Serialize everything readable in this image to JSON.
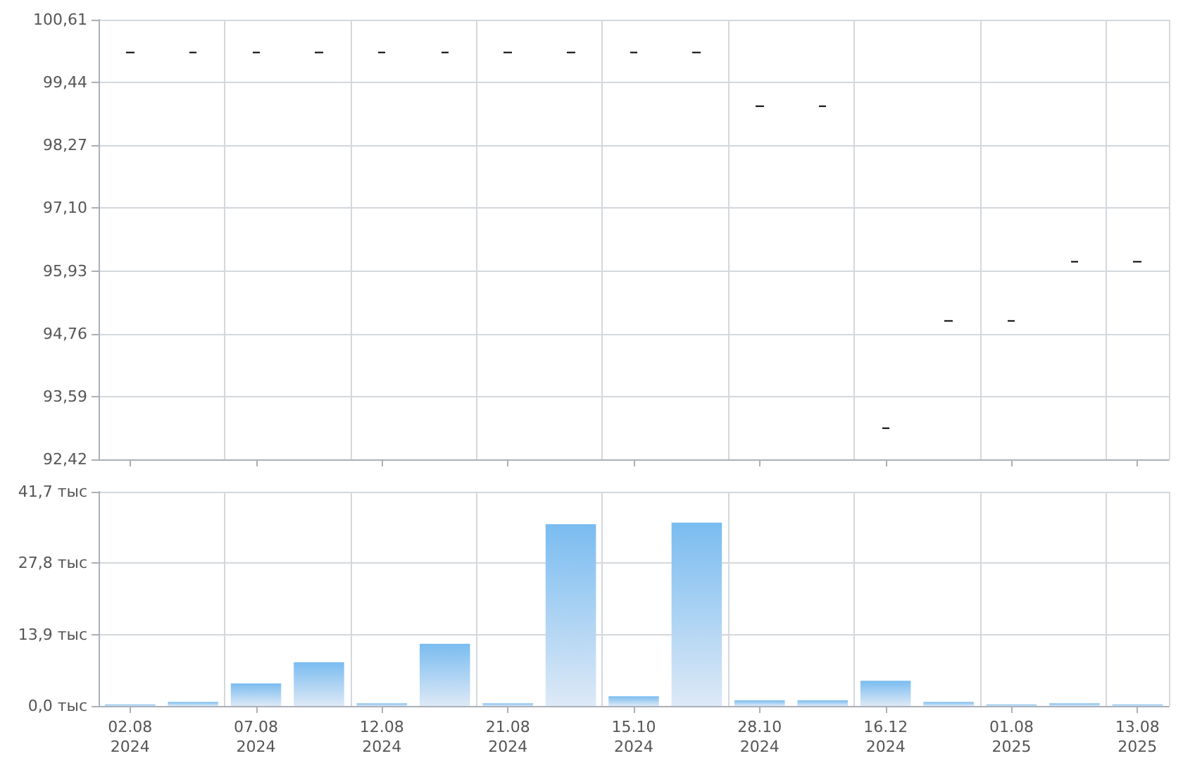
{
  "chart_data": [
    {
      "type": "candlestick",
      "categories": [
        null,
        null,
        null,
        null,
        null,
        null,
        null,
        null,
        null,
        null,
        null,
        null,
        null,
        null,
        null,
        null,
        null
      ],
      "ohlc": [
        [
          100.0,
          100.0,
          100.0,
          100.0
        ],
        [
          100.0,
          100.0,
          100.0,
          100.0
        ],
        [
          100.0,
          100.0,
          100.0,
          100.0
        ],
        [
          100.0,
          100.0,
          100.0,
          100.0
        ],
        [
          100.0,
          100.0,
          100.0,
          100.0
        ],
        [
          100.0,
          100.0,
          100.0,
          100.0
        ],
        [
          100.0,
          100.0,
          100.0,
          100.0
        ],
        [
          100.0,
          100.0,
          100.0,
          100.0
        ],
        [
          100.0,
          100.0,
          100.0,
          100.0
        ],
        [
          100.0,
          100.0,
          100.0,
          100.0
        ],
        [
          99.0,
          99.0,
          99.0,
          99.0
        ],
        [
          99.0,
          99.0,
          99.0,
          99.0
        ],
        [
          93.0,
          93.0,
          93.0,
          93.0
        ],
        [
          95.0,
          95.0,
          95.0,
          95.0
        ],
        [
          95.0,
          95.0,
          95.0,
          95.0
        ],
        [
          96.1,
          96.1,
          96.1,
          96.1
        ],
        [
          96.1,
          96.1,
          96.1,
          96.1
        ]
      ],
      "color": "#000000",
      "ylim": [
        92.42,
        100.61
      ],
      "yticks": [
        {
          "value": 92.42,
          "label": "92,42"
        },
        {
          "value": 93.59,
          "label": "93,59"
        },
        {
          "value": 94.76,
          "label": "94,76"
        },
        {
          "value": 95.93,
          "label": "95,93"
        },
        {
          "value": 97.1,
          "label": "97,10"
        },
        {
          "value": 98.27,
          "label": "98,27"
        },
        {
          "value": 99.44,
          "label": "99,44"
        },
        {
          "value": 100.61,
          "label": "100,61"
        }
      ],
      "grid": true,
      "tick_labels": "y"
    },
    {
      "type": "bar",
      "categories": [
        "02.08\n2024",
        null,
        "07.08\n2024",
        null,
        "12.08\n2024",
        null,
        "21.08\n2024",
        null,
        "15.10\n2024",
        null,
        "28.10\n2024",
        null,
        "16.12\n2024",
        null,
        "01.08\n2025",
        null,
        "13.08\n2025"
      ],
      "values": [
        0.3,
        0.8,
        4.4,
        8.5,
        0.5,
        12.1,
        0.5,
        35.4,
        1.9,
        35.7,
        1.1,
        1.1,
        4.9,
        0.8,
        0.3,
        0.5,
        0.3
      ],
      "color": "#7abcf0",
      "ylim": [
        0,
        41.7
      ],
      "yticks": [
        {
          "value": 0,
          "label": "0,0 тыс"
        },
        {
          "value": 13.9,
          "label": "13,9 тыс"
        },
        {
          "value": 27.8,
          "label": "27,8 тыс"
        },
        {
          "value": 41.7,
          "label": "41,7 тыс"
        }
      ],
      "grid": true
    }
  ]
}
